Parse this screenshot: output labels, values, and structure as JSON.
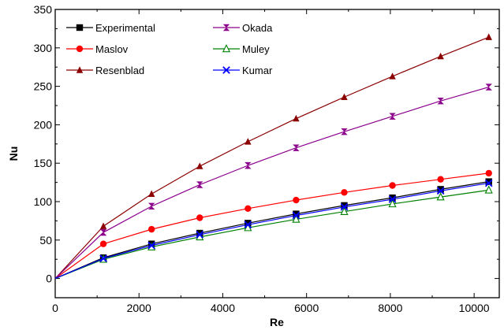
{
  "chart_data": {
    "type": "line",
    "title": "",
    "xlabel": "Re",
    "ylabel": "Nu",
    "xlim": [
      0,
      10600
    ],
    "ylim": [
      -25,
      350
    ],
    "x_ticks": [
      0,
      2000,
      4000,
      6000,
      8000,
      10000
    ],
    "y_ticks": [
      0,
      50,
      100,
      150,
      200,
      250,
      300,
      350
    ],
    "grid": false,
    "legend": "top-left",
    "x": [
      0,
      1150,
      2300,
      3450,
      4600,
      5750,
      6900,
      8050,
      9200,
      10350
    ],
    "series": [
      {
        "name": "Experimental",
        "color": "#000000",
        "marker": "square",
        "values": [
          0,
          27,
          45,
          59,
          72,
          84,
          95,
          105,
          116,
          126
        ]
      },
      {
        "name": "Maslov",
        "color": "#ff0000",
        "marker": "circle",
        "values": [
          0,
          45,
          64,
          79,
          91,
          102,
          112,
          121,
          129,
          137
        ]
      },
      {
        "name": "Resenblad",
        "color": "#8b0000",
        "marker": "triangle",
        "values": [
          0,
          68,
          110,
          146,
          178,
          208,
          236,
          263,
          289,
          314
        ]
      },
      {
        "name": "Okada",
        "color": "#8b008b",
        "marker": "hourglass",
        "values": [
          0,
          60,
          94,
          122,
          147,
          170,
          191,
          211,
          231,
          249
        ]
      },
      {
        "name": "Muley",
        "color": "#008000",
        "marker": "open-triangle",
        "values": [
          0,
          25,
          41,
          54,
          66,
          77,
          87,
          97,
          106,
          115
        ]
      },
      {
        "name": "Kumar",
        "color": "#0000ff",
        "marker": "x",
        "values": [
          0,
          26,
          43,
          57,
          70,
          82,
          93,
          103,
          114,
          124
        ]
      }
    ]
  }
}
